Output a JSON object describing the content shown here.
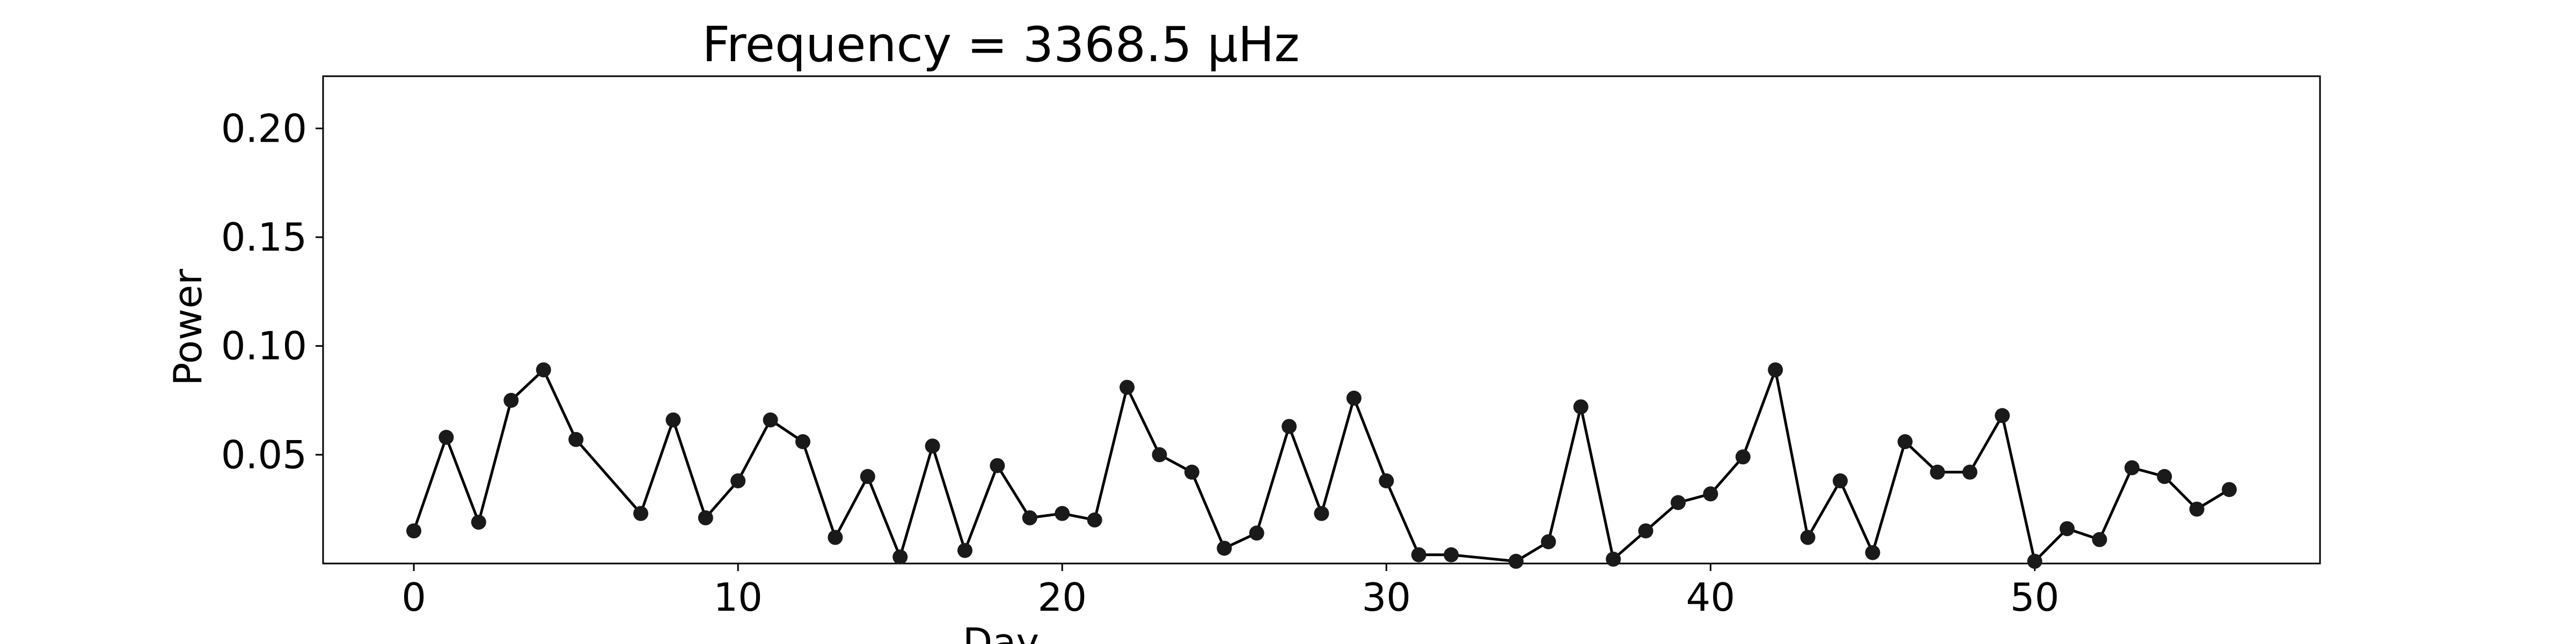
{
  "chart_data": {
    "type": "line",
    "title": "Frequency = 3368.5 μHz",
    "xlabel": "Day",
    "ylabel": "Power",
    "xlim": [
      -2.8,
      58.8
    ],
    "ylim": [
      0.0,
      0.224
    ],
    "x_ticks": [
      0,
      10,
      20,
      30,
      40,
      50
    ],
    "y_ticks": [
      0.05,
      0.1,
      0.15,
      0.2
    ],
    "x_tick_labels": [
      "0",
      "10",
      "20",
      "30",
      "40",
      "50"
    ],
    "y_tick_labels": [
      "0.05",
      "0.10",
      "0.15",
      "0.20"
    ],
    "grid": false,
    "line_color": "#000000",
    "marker_color": "#1a1a1a",
    "series": [
      {
        "x": [
          0,
          1,
          2,
          3,
          4,
          5,
          7,
          8,
          9,
          10,
          11,
          12,
          13,
          14,
          15,
          16,
          17,
          18,
          19,
          20,
          21,
          22,
          23,
          24,
          25,
          26,
          27,
          28,
          29,
          30,
          31,
          32,
          34,
          35,
          36,
          37,
          38,
          39,
          40,
          41,
          42,
          43,
          44,
          45,
          46,
          47,
          48,
          49,
          50,
          51,
          52,
          53,
          54,
          55,
          56
        ],
        "y": [
          0.015,
          0.058,
          0.019,
          0.075,
          0.089,
          0.057,
          0.023,
          0.066,
          0.021,
          0.038,
          0.066,
          0.056,
          0.012,
          0.04,
          0.003,
          0.054,
          0.006,
          0.045,
          0.021,
          0.023,
          0.02,
          0.081,
          0.05,
          0.042,
          0.007,
          0.014,
          0.063,
          0.023,
          0.076,
          0.038,
          0.004,
          0.004,
          0.001,
          0.01,
          0.072,
          0.002,
          0.015,
          0.028,
          0.032,
          0.049,
          0.089,
          0.012,
          0.038,
          0.005,
          0.056,
          0.042,
          0.042,
          0.068,
          0.001,
          0.016,
          0.011,
          0.044,
          0.04,
          0.025,
          0.034
        ]
      }
    ]
  }
}
